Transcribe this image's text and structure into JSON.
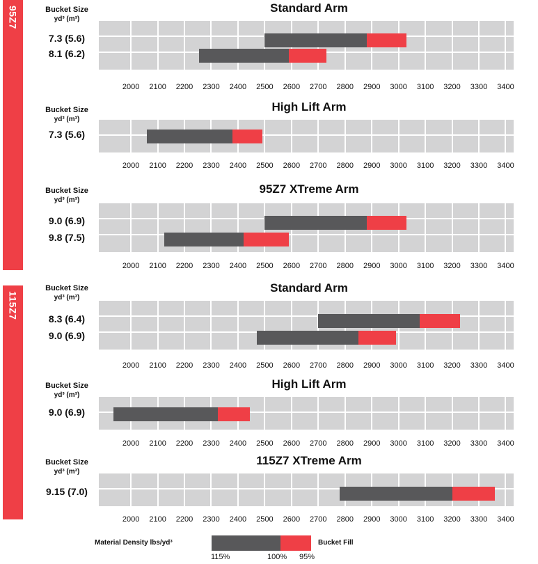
{
  "bucket_header": {
    "title": "Bucket Size",
    "units": "yd³ (m³)"
  },
  "x_ticks": [
    2000,
    2100,
    2200,
    2300,
    2400,
    2500,
    2600,
    2700,
    2800,
    2900,
    3000,
    3100,
    3200,
    3300,
    3400
  ],
  "groups": [
    {
      "label": "95Z7",
      "panels": [
        {
          "title": "Standard Arm",
          "rows": [
            {
              "label": "7.3 (5.6)",
              "start": 2500,
              "split": 2880,
              "end": 3030
            },
            {
              "label": "8.1 (6.2)",
              "start": 2255,
              "split": 2590,
              "end": 2730
            }
          ]
        },
        {
          "title": "High Lift Arm",
          "rows": [
            {
              "label": "7.3 (5.6)",
              "start": 2060,
              "split": 2380,
              "end": 2490
            }
          ]
        },
        {
          "title": "95Z7 XTreme Arm",
          "rows": [
            {
              "label": "9.0 (6.9)",
              "start": 2500,
              "split": 2880,
              "end": 3030
            },
            {
              "label": "9.8 (7.5)",
              "start": 2125,
              "split": 2420,
              "end": 2590
            }
          ]
        }
      ]
    },
    {
      "label": "115Z7",
      "panels": [
        {
          "title": "Standard Arm",
          "rows": [
            {
              "label": "8.3 (6.4)",
              "start": 2700,
              "split": 3080,
              "end": 3230
            },
            {
              "label": "9.0 (6.9)",
              "start": 2470,
              "split": 2850,
              "end": 2990
            }
          ]
        },
        {
          "title": "High Lift Arm",
          "rows": [
            {
              "label": "9.0 (6.9)",
              "start": 1935,
              "split": 2325,
              "end": 2445
            }
          ]
        },
        {
          "title": "115Z7 XTreme Arm",
          "rows": [
            {
              "label": "9.15 (7.0)",
              "start": 2780,
              "split": 3200,
              "end": 3360
            }
          ]
        }
      ]
    }
  ],
  "legend": {
    "left_label": "Material Density lbs/yd³",
    "right_label": "Bucket Fill",
    "pct_115": "115%",
    "pct_100": "100%",
    "pct_95": "95%"
  },
  "colors": {
    "dark": "#58585a",
    "red": "#ef3f46",
    "plot_bg": "#d3d3d4"
  },
  "chart_data": [
    {
      "type": "bar",
      "title": "Standard Arm",
      "orientation": "horizontal range",
      "xlim": [
        1880,
        3430
      ],
      "xticks": [
        2000,
        2100,
        2200,
        2300,
        2400,
        2500,
        2600,
        2700,
        2800,
        2900,
        3000,
        3100,
        3200,
        3300,
        3400
      ],
      "categories": [
        "7.3 (5.6)",
        "8.1 (6.2)"
      ],
      "series": [
        {
          "name": "115%",
          "values": [
            2500,
            2255
          ]
        },
        {
          "name": "100%",
          "values": [
            2880,
            2590
          ]
        },
        {
          "name": "95%",
          "values": [
            3030,
            2730
          ]
        }
      ]
    },
    {
      "type": "bar",
      "title": "High Lift Arm",
      "orientation": "horizontal range",
      "xlim": [
        1880,
        3430
      ],
      "categories": [
        "7.3 (5.6)"
      ],
      "series": [
        {
          "name": "115%",
          "values": [
            2060
          ]
        },
        {
          "name": "100%",
          "values": [
            2380
          ]
        },
        {
          "name": "95%",
          "values": [
            2490
          ]
        }
      ]
    },
    {
      "type": "bar",
      "title": "95Z7 XTreme Arm",
      "orientation": "horizontal range",
      "xlim": [
        1880,
        3430
      ],
      "categories": [
        "9.0 (6.9)",
        "9.8 (7.5)"
      ],
      "series": [
        {
          "name": "115%",
          "values": [
            2500,
            2125
          ]
        },
        {
          "name": "100%",
          "values": [
            2880,
            2420
          ]
        },
        {
          "name": "95%",
          "values": [
            3030,
            2590
          ]
        }
      ]
    },
    {
      "type": "bar",
      "title": "Standard Arm",
      "orientation": "horizontal range",
      "xlim": [
        1880,
        3430
      ],
      "categories": [
        "8.3 (6.4)",
        "9.0 (6.9)"
      ],
      "series": [
        {
          "name": "115%",
          "values": [
            2700,
            2470
          ]
        },
        {
          "name": "100%",
          "values": [
            3080,
            2850
          ]
        },
        {
          "name": "95%",
          "values": [
            3230,
            2990
          ]
        }
      ]
    },
    {
      "type": "bar",
      "title": "High Lift Arm",
      "orientation": "horizontal range",
      "xlim": [
        1880,
        3430
      ],
      "categories": [
        "9.0 (6.9)"
      ],
      "series": [
        {
          "name": "115%",
          "values": [
            1935
          ]
        },
        {
          "name": "100%",
          "values": [
            2325
          ]
        },
        {
          "name": "95%",
          "values": [
            2445
          ]
        }
      ]
    },
    {
      "type": "bar",
      "title": "115Z7 XTreme Arm",
      "orientation": "horizontal range",
      "xlim": [
        1880,
        3430
      ],
      "categories": [
        "9.15 (7.0)"
      ],
      "series": [
        {
          "name": "115%",
          "values": [
            2780
          ]
        },
        {
          "name": "100%",
          "values": [
            3200
          ]
        },
        {
          "name": "95%",
          "values": [
            3360
          ]
        }
      ]
    }
  ]
}
